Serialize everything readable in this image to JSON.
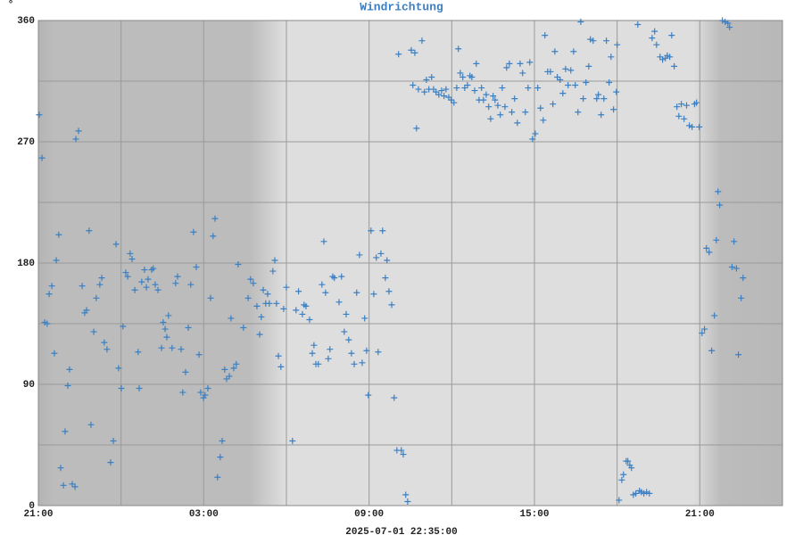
{
  "chart_data": {
    "type": "scatter",
    "title": "Windrichtung",
    "ylabel": "°",
    "xlabel": "2025-07-01 22:35:00",
    "color": "#3a7fc1",
    "grid": true,
    "xlim": [
      0,
      27
    ],
    "ylim": [
      0,
      360
    ],
    "xticks": [
      {
        "value": 0,
        "label": "21:00"
      },
      {
        "value": 6,
        "label": "03:00"
      },
      {
        "value": 12,
        "label": "09:00"
      },
      {
        "value": 18,
        "label": "15:00"
      },
      {
        "value": 24,
        "label": "21:00"
      }
    ],
    "xminor_ticks": [
      3,
      9,
      15,
      21
    ],
    "yticks": [
      0,
      90,
      180,
      270,
      360
    ],
    "yminor_ticks": [
      45,
      135,
      225,
      315
    ],
    "x": [
      0.03,
      0.13,
      0.23,
      0.32,
      0.39,
      0.49,
      0.58,
      0.65,
      0.74,
      0.81,
      0.91,
      0.97,
      1.07,
      1.13,
      1.23,
      1.33,
      1.36,
      1.46,
      1.59,
      1.68,
      1.75,
      1.84,
      1.91,
      2.01,
      2.1,
      2.23,
      2.3,
      2.39,
      2.49,
      2.62,
      2.72,
      2.82,
      2.91,
      3.01,
      3.07,
      3.17,
      3.24,
      3.33,
      3.4,
      3.5,
      3.62,
      3.66,
      3.75,
      3.85,
      3.92,
      3.98,
      4.11,
      4.17,
      4.24,
      4.34,
      4.47,
      4.53,
      4.6,
      4.66,
      4.72,
      4.85,
      4.98,
      5.05,
      5.18,
      5.24,
      5.34,
      5.44,
      5.53,
      5.63,
      5.73,
      5.83,
      5.89,
      5.99,
      6.05,
      6.15,
      6.25,
      6.34,
      6.41,
      6.5,
      6.6,
      6.67,
      6.76,
      6.83,
      6.93,
      6.99,
      7.09,
      7.18,
      7.25,
      7.44,
      7.61,
      7.7,
      7.8,
      7.93,
      8.03,
      8.09,
      8.16,
      8.25,
      8.32,
      8.38,
      8.51,
      8.58,
      8.64,
      8.71,
      8.8,
      8.9,
      9.0,
      9.22,
      9.35,
      9.44,
      9.58,
      9.64,
      9.71,
      9.84,
      9.94,
      10.0,
      10.07,
      10.16,
      10.29,
      10.36,
      10.42,
      10.52,
      10.58,
      10.68,
      10.74,
      10.91,
      11.0,
      11.1,
      11.17,
      11.26,
      11.36,
      11.46,
      11.55,
      11.65,
      11.75,
      11.84,
      11.91,
      11.97,
      12.07,
      12.17,
      12.26,
      12.33,
      12.43,
      12.49,
      12.59,
      12.65,
      12.72,
      12.82,
      12.91,
      13.01,
      13.07,
      13.17,
      13.24,
      13.33,
      13.4,
      13.53,
      13.59,
      13.66,
      13.72,
      13.79,
      13.92,
      14.01,
      14.08,
      14.17,
      14.27,
      14.34,
      14.43,
      14.53,
      14.63,
      14.72,
      14.79,
      14.89,
      14.98,
      15.08,
      15.18,
      15.24,
      15.31,
      15.4,
      15.47,
      15.57,
      15.66,
      15.73,
      15.83,
      15.89,
      15.99,
      16.08,
      16.15,
      16.25,
      16.34,
      16.41,
      16.5,
      16.57,
      16.67,
      16.76,
      16.83,
      16.93,
      16.99,
      17.09,
      17.18,
      17.28,
      17.38,
      17.48,
      17.57,
      17.67,
      17.77,
      17.83,
      17.93,
      18.03,
      18.12,
      18.22,
      18.32,
      18.38,
      18.48,
      18.58,
      18.67,
      18.74,
      18.83,
      18.93,
      19.03,
      19.13,
      19.22,
      19.32,
      19.42,
      19.48,
      19.58,
      19.68,
      19.77,
      19.87,
      19.97,
      20.03,
      20.13,
      20.26,
      20.32,
      20.42,
      20.52,
      20.61,
      20.71,
      20.78,
      20.87,
      20.97,
      21.0,
      21.07,
      21.17,
      21.23,
      21.33,
      21.39,
      21.46,
      21.52,
      21.59,
      21.68,
      21.75,
      21.81,
      21.88,
      21.97,
      22.07,
      22.17,
      22.27,
      22.36,
      22.43,
      22.56,
      22.65,
      22.75,
      22.82,
      22.91,
      22.98,
      23.07,
      23.17,
      23.24,
      23.33,
      23.43,
      23.52,
      23.62,
      23.72,
      23.81,
      23.88,
      23.98,
      24.08,
      24.17,
      24.24,
      24.34,
      24.43,
      24.53,
      24.6,
      24.66,
      24.72,
      24.82,
      24.92,
      25.02,
      25.08,
      25.17,
      25.24,
      25.33,
      25.4,
      25.5,
      25.57
    ],
    "values": [
      290,
      258,
      136,
      135,
      157,
      163,
      113,
      182,
      201,
      28,
      15,
      55,
      89,
      101,
      16,
      14,
      272,
      278,
      163,
      143,
      145,
      204,
      60,
      129,
      154,
      164,
      169,
      121,
      116,
      32,
      48,
      194,
      102,
      87,
      133,
      173,
      170,
      187,
      183,
      160,
      114,
      87,
      166,
      175,
      162,
      168,
      175,
      176,
      164,
      160,
      117,
      136,
      131,
      125,
      141,
      117,
      165,
      170,
      116,
      84,
      99,
      132,
      164,
      203,
      177,
      112,
      84,
      80,
      82,
      87,
      154,
      200,
      213,
      21,
      36,
      48,
      101,
      94,
      96,
      139,
      102,
      105,
      179,
      132,
      154,
      168,
      165,
      148,
      127,
      140,
      160,
      150,
      157,
      150,
      174,
      182,
      150,
      111,
      103,
      146,
      162,
      48,
      145,
      159,
      142,
      149,
      148,
      138,
      113,
      119,
      105,
      105,
      164,
      196,
      158,
      109,
      116,
      170,
      169,
      151,
      170,
      129,
      142,
      123,
      113,
      105,
      158,
      186,
      106,
      139,
      115,
      82,
      204,
      157,
      184,
      114,
      187,
      204,
      169,
      182,
      159,
      149,
      80,
      41,
      335,
      41,
      38,
      8,
      3,
      338,
      312,
      336,
      280,
      309,
      345,
      307,
      316,
      309,
      318,
      309,
      307,
      305,
      308,
      304,
      309,
      303,
      301,
      299,
      310,
      339,
      321,
      318,
      310,
      312,
      319,
      318,
      308,
      328,
      301,
      310,
      301,
      305,
      296,
      287,
      304,
      301,
      297,
      290,
      310,
      296,
      325,
      328,
      292,
      302,
      284,
      328,
      321,
      292,
      310,
      329,
      272,
      276,
      310,
      295,
      286,
      349,
      322,
      322,
      298,
      337,
      318,
      316,
      306,
      324,
      312,
      323,
      337,
      312,
      292,
      359,
      302,
      314,
      326,
      346,
      345,
      302,
      305,
      290,
      302,
      345,
      314,
      333,
      294,
      307,
      342,
      4,
      19,
      23,
      33,
      33,
      30,
      28,
      8,
      9,
      357,
      11,
      10,
      9,
      10,
      9,
      347,
      352,
      342,
      333,
      331,
      332,
      334,
      333,
      349,
      326,
      296,
      289,
      298,
      287,
      297,
      282,
      281,
      298,
      299,
      281,
      128,
      131,
      191,
      188,
      115,
      141,
      197,
      233,
      223,
      360,
      359,
      358,
      355,
      177,
      196,
      176,
      112,
      154,
      169
    ]
  }
}
